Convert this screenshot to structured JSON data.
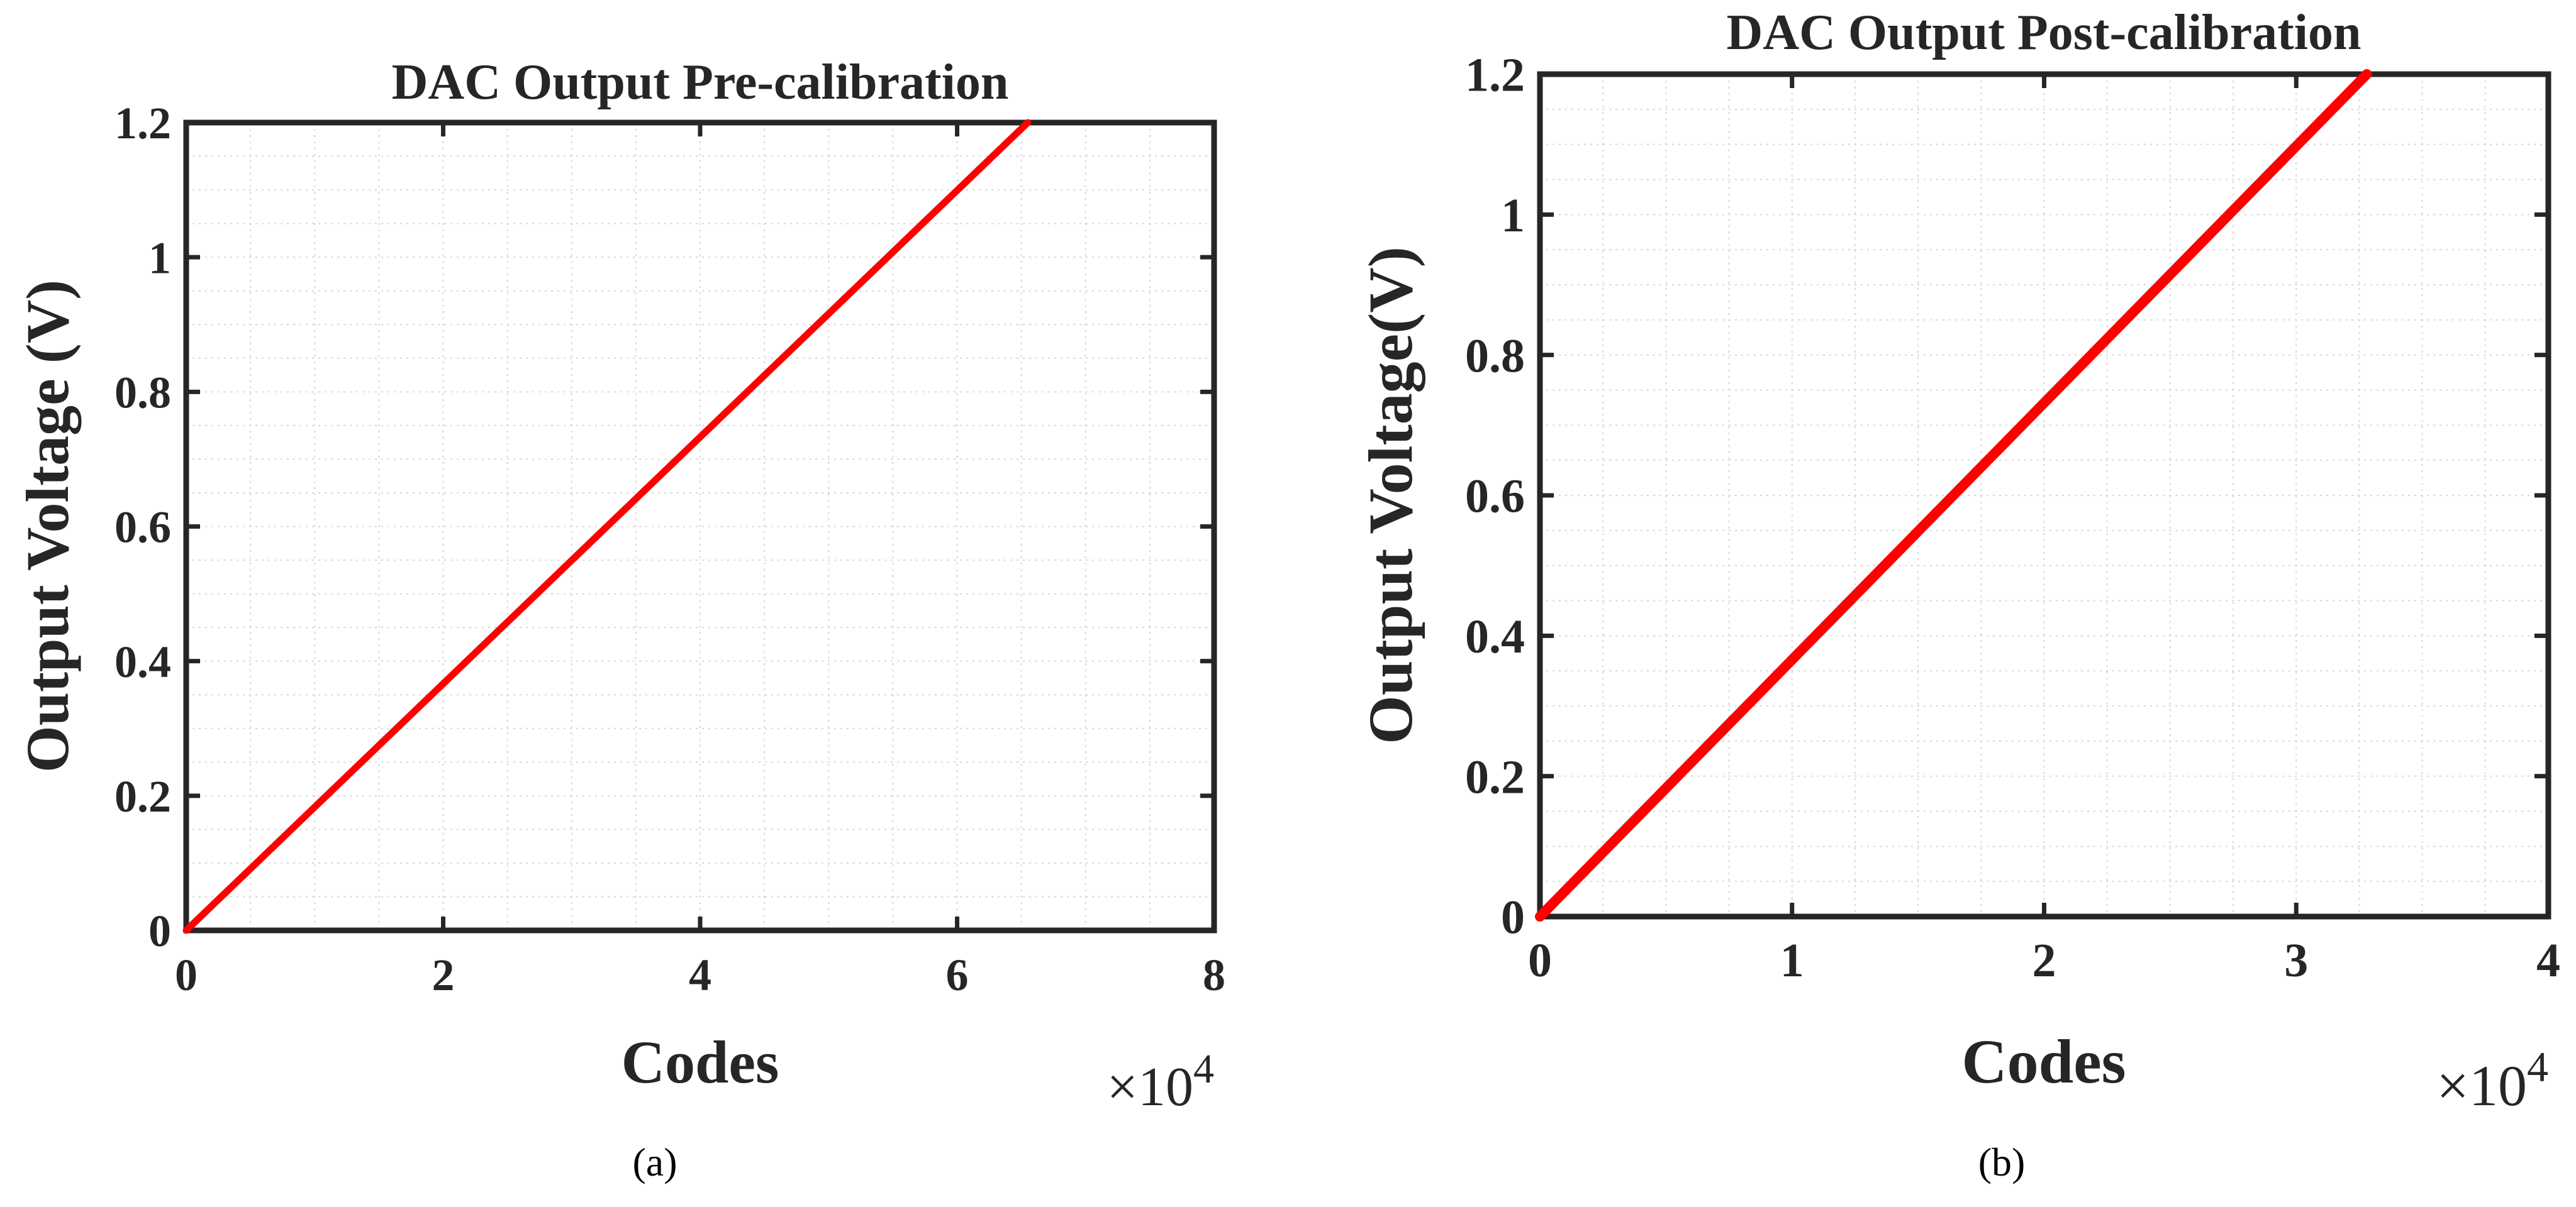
{
  "chart_data": [
    {
      "panel": "a",
      "caption": "(a)",
      "type": "line",
      "title": "DAC Output Pre-calibration",
      "xlabel": "Codes",
      "ylabel": "Output Voltage (V)",
      "x_multiplier": "×10",
      "x_multiplier_exp": "4",
      "xlim": [
        0,
        8
      ],
      "ylim": [
        0,
        1.2
      ],
      "xticks": [
        0,
        2,
        4,
        6,
        8
      ],
      "xtick_labels": [
        "0",
        "2",
        "4",
        "6",
        "8"
      ],
      "yticks": [
        0,
        0.2,
        0.4,
        0.6,
        0.8,
        1,
        1.2
      ],
      "ytick_labels": [
        "0",
        "0.2",
        "0.4",
        "0.6",
        "0.8",
        "1",
        "1.2"
      ],
      "grid": true,
      "series": [
        {
          "color": "#ff0000",
          "x": [
            0,
            6.55
          ],
          "y": [
            0,
            1.2
          ]
        }
      ]
    },
    {
      "panel": "b",
      "caption": "(b)",
      "type": "line",
      "title": "DAC Output Post-calibration",
      "xlabel": "Codes",
      "ylabel": "Output Voltage(V)",
      "x_multiplier": "×10",
      "x_multiplier_exp": "4",
      "xlim": [
        0,
        4
      ],
      "ylim": [
        0,
        1.2
      ],
      "xticks": [
        0,
        1,
        2,
        3,
        4
      ],
      "xtick_labels": [
        "0",
        "1",
        "2",
        "3",
        "4"
      ],
      "yticks": [
        0,
        0.2,
        0.4,
        0.6,
        0.8,
        1,
        1.2
      ],
      "ytick_labels": [
        "0",
        "0.2",
        "0.4",
        "0.6",
        "0.8",
        "1",
        "1.2"
      ],
      "grid": true,
      "series": [
        {
          "color": "#ff0000",
          "x": [
            0,
            3.28
          ],
          "y": [
            0,
            1.2
          ]
        }
      ]
    }
  ]
}
